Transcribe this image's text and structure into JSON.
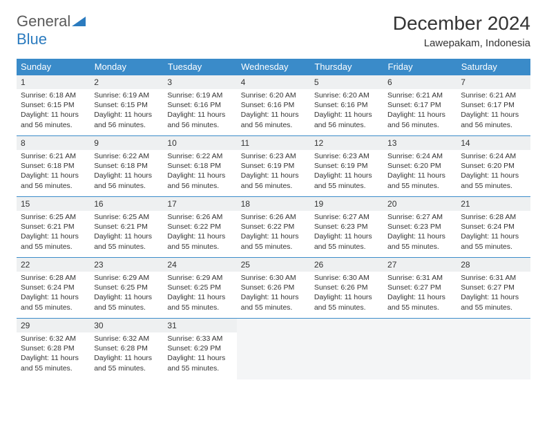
{
  "logo": {
    "text_gray": "General",
    "text_blue": "Blue"
  },
  "title": "December 2024",
  "location": "Lawepakam, Indonesia",
  "day_headers": [
    "Sunday",
    "Monday",
    "Tuesday",
    "Wednesday",
    "Thursday",
    "Friday",
    "Saturday"
  ],
  "colors": {
    "header_bg": "#3a8bc9",
    "header_text": "#ffffff",
    "daynum_bg": "#eef0f1",
    "border": "#3a8bc9",
    "logo_gray": "#5a5a5a",
    "logo_blue": "#2b7bbf",
    "text": "#333333",
    "empty_bg": "#f4f5f6"
  },
  "weeks": [
    [
      {
        "num": "1",
        "sunrise": "6:18 AM",
        "sunset": "6:15 PM",
        "daylight": "11 hours and 56 minutes."
      },
      {
        "num": "2",
        "sunrise": "6:19 AM",
        "sunset": "6:15 PM",
        "daylight": "11 hours and 56 minutes."
      },
      {
        "num": "3",
        "sunrise": "6:19 AM",
        "sunset": "6:16 PM",
        "daylight": "11 hours and 56 minutes."
      },
      {
        "num": "4",
        "sunrise": "6:20 AM",
        "sunset": "6:16 PM",
        "daylight": "11 hours and 56 minutes."
      },
      {
        "num": "5",
        "sunrise": "6:20 AM",
        "sunset": "6:16 PM",
        "daylight": "11 hours and 56 minutes."
      },
      {
        "num": "6",
        "sunrise": "6:21 AM",
        "sunset": "6:17 PM",
        "daylight": "11 hours and 56 minutes."
      },
      {
        "num": "7",
        "sunrise": "6:21 AM",
        "sunset": "6:17 PM",
        "daylight": "11 hours and 56 minutes."
      }
    ],
    [
      {
        "num": "8",
        "sunrise": "6:21 AM",
        "sunset": "6:18 PM",
        "daylight": "11 hours and 56 minutes."
      },
      {
        "num": "9",
        "sunrise": "6:22 AM",
        "sunset": "6:18 PM",
        "daylight": "11 hours and 56 minutes."
      },
      {
        "num": "10",
        "sunrise": "6:22 AM",
        "sunset": "6:18 PM",
        "daylight": "11 hours and 56 minutes."
      },
      {
        "num": "11",
        "sunrise": "6:23 AM",
        "sunset": "6:19 PM",
        "daylight": "11 hours and 56 minutes."
      },
      {
        "num": "12",
        "sunrise": "6:23 AM",
        "sunset": "6:19 PM",
        "daylight": "11 hours and 55 minutes."
      },
      {
        "num": "13",
        "sunrise": "6:24 AM",
        "sunset": "6:20 PM",
        "daylight": "11 hours and 55 minutes."
      },
      {
        "num": "14",
        "sunrise": "6:24 AM",
        "sunset": "6:20 PM",
        "daylight": "11 hours and 55 minutes."
      }
    ],
    [
      {
        "num": "15",
        "sunrise": "6:25 AM",
        "sunset": "6:21 PM",
        "daylight": "11 hours and 55 minutes."
      },
      {
        "num": "16",
        "sunrise": "6:25 AM",
        "sunset": "6:21 PM",
        "daylight": "11 hours and 55 minutes."
      },
      {
        "num": "17",
        "sunrise": "6:26 AM",
        "sunset": "6:22 PM",
        "daylight": "11 hours and 55 minutes."
      },
      {
        "num": "18",
        "sunrise": "6:26 AM",
        "sunset": "6:22 PM",
        "daylight": "11 hours and 55 minutes."
      },
      {
        "num": "19",
        "sunrise": "6:27 AM",
        "sunset": "6:23 PM",
        "daylight": "11 hours and 55 minutes."
      },
      {
        "num": "20",
        "sunrise": "6:27 AM",
        "sunset": "6:23 PM",
        "daylight": "11 hours and 55 minutes."
      },
      {
        "num": "21",
        "sunrise": "6:28 AM",
        "sunset": "6:24 PM",
        "daylight": "11 hours and 55 minutes."
      }
    ],
    [
      {
        "num": "22",
        "sunrise": "6:28 AM",
        "sunset": "6:24 PM",
        "daylight": "11 hours and 55 minutes."
      },
      {
        "num": "23",
        "sunrise": "6:29 AM",
        "sunset": "6:25 PM",
        "daylight": "11 hours and 55 minutes."
      },
      {
        "num": "24",
        "sunrise": "6:29 AM",
        "sunset": "6:25 PM",
        "daylight": "11 hours and 55 minutes."
      },
      {
        "num": "25",
        "sunrise": "6:30 AM",
        "sunset": "6:26 PM",
        "daylight": "11 hours and 55 minutes."
      },
      {
        "num": "26",
        "sunrise": "6:30 AM",
        "sunset": "6:26 PM",
        "daylight": "11 hours and 55 minutes."
      },
      {
        "num": "27",
        "sunrise": "6:31 AM",
        "sunset": "6:27 PM",
        "daylight": "11 hours and 55 minutes."
      },
      {
        "num": "28",
        "sunrise": "6:31 AM",
        "sunset": "6:27 PM",
        "daylight": "11 hours and 55 minutes."
      }
    ],
    [
      {
        "num": "29",
        "sunrise": "6:32 AM",
        "sunset": "6:28 PM",
        "daylight": "11 hours and 55 minutes."
      },
      {
        "num": "30",
        "sunrise": "6:32 AM",
        "sunset": "6:28 PM",
        "daylight": "11 hours and 55 minutes."
      },
      {
        "num": "31",
        "sunrise": "6:33 AM",
        "sunset": "6:29 PM",
        "daylight": "11 hours and 55 minutes."
      },
      null,
      null,
      null,
      null
    ]
  ],
  "labels": {
    "sunrise": "Sunrise:",
    "sunset": "Sunset:",
    "daylight": "Daylight:"
  }
}
